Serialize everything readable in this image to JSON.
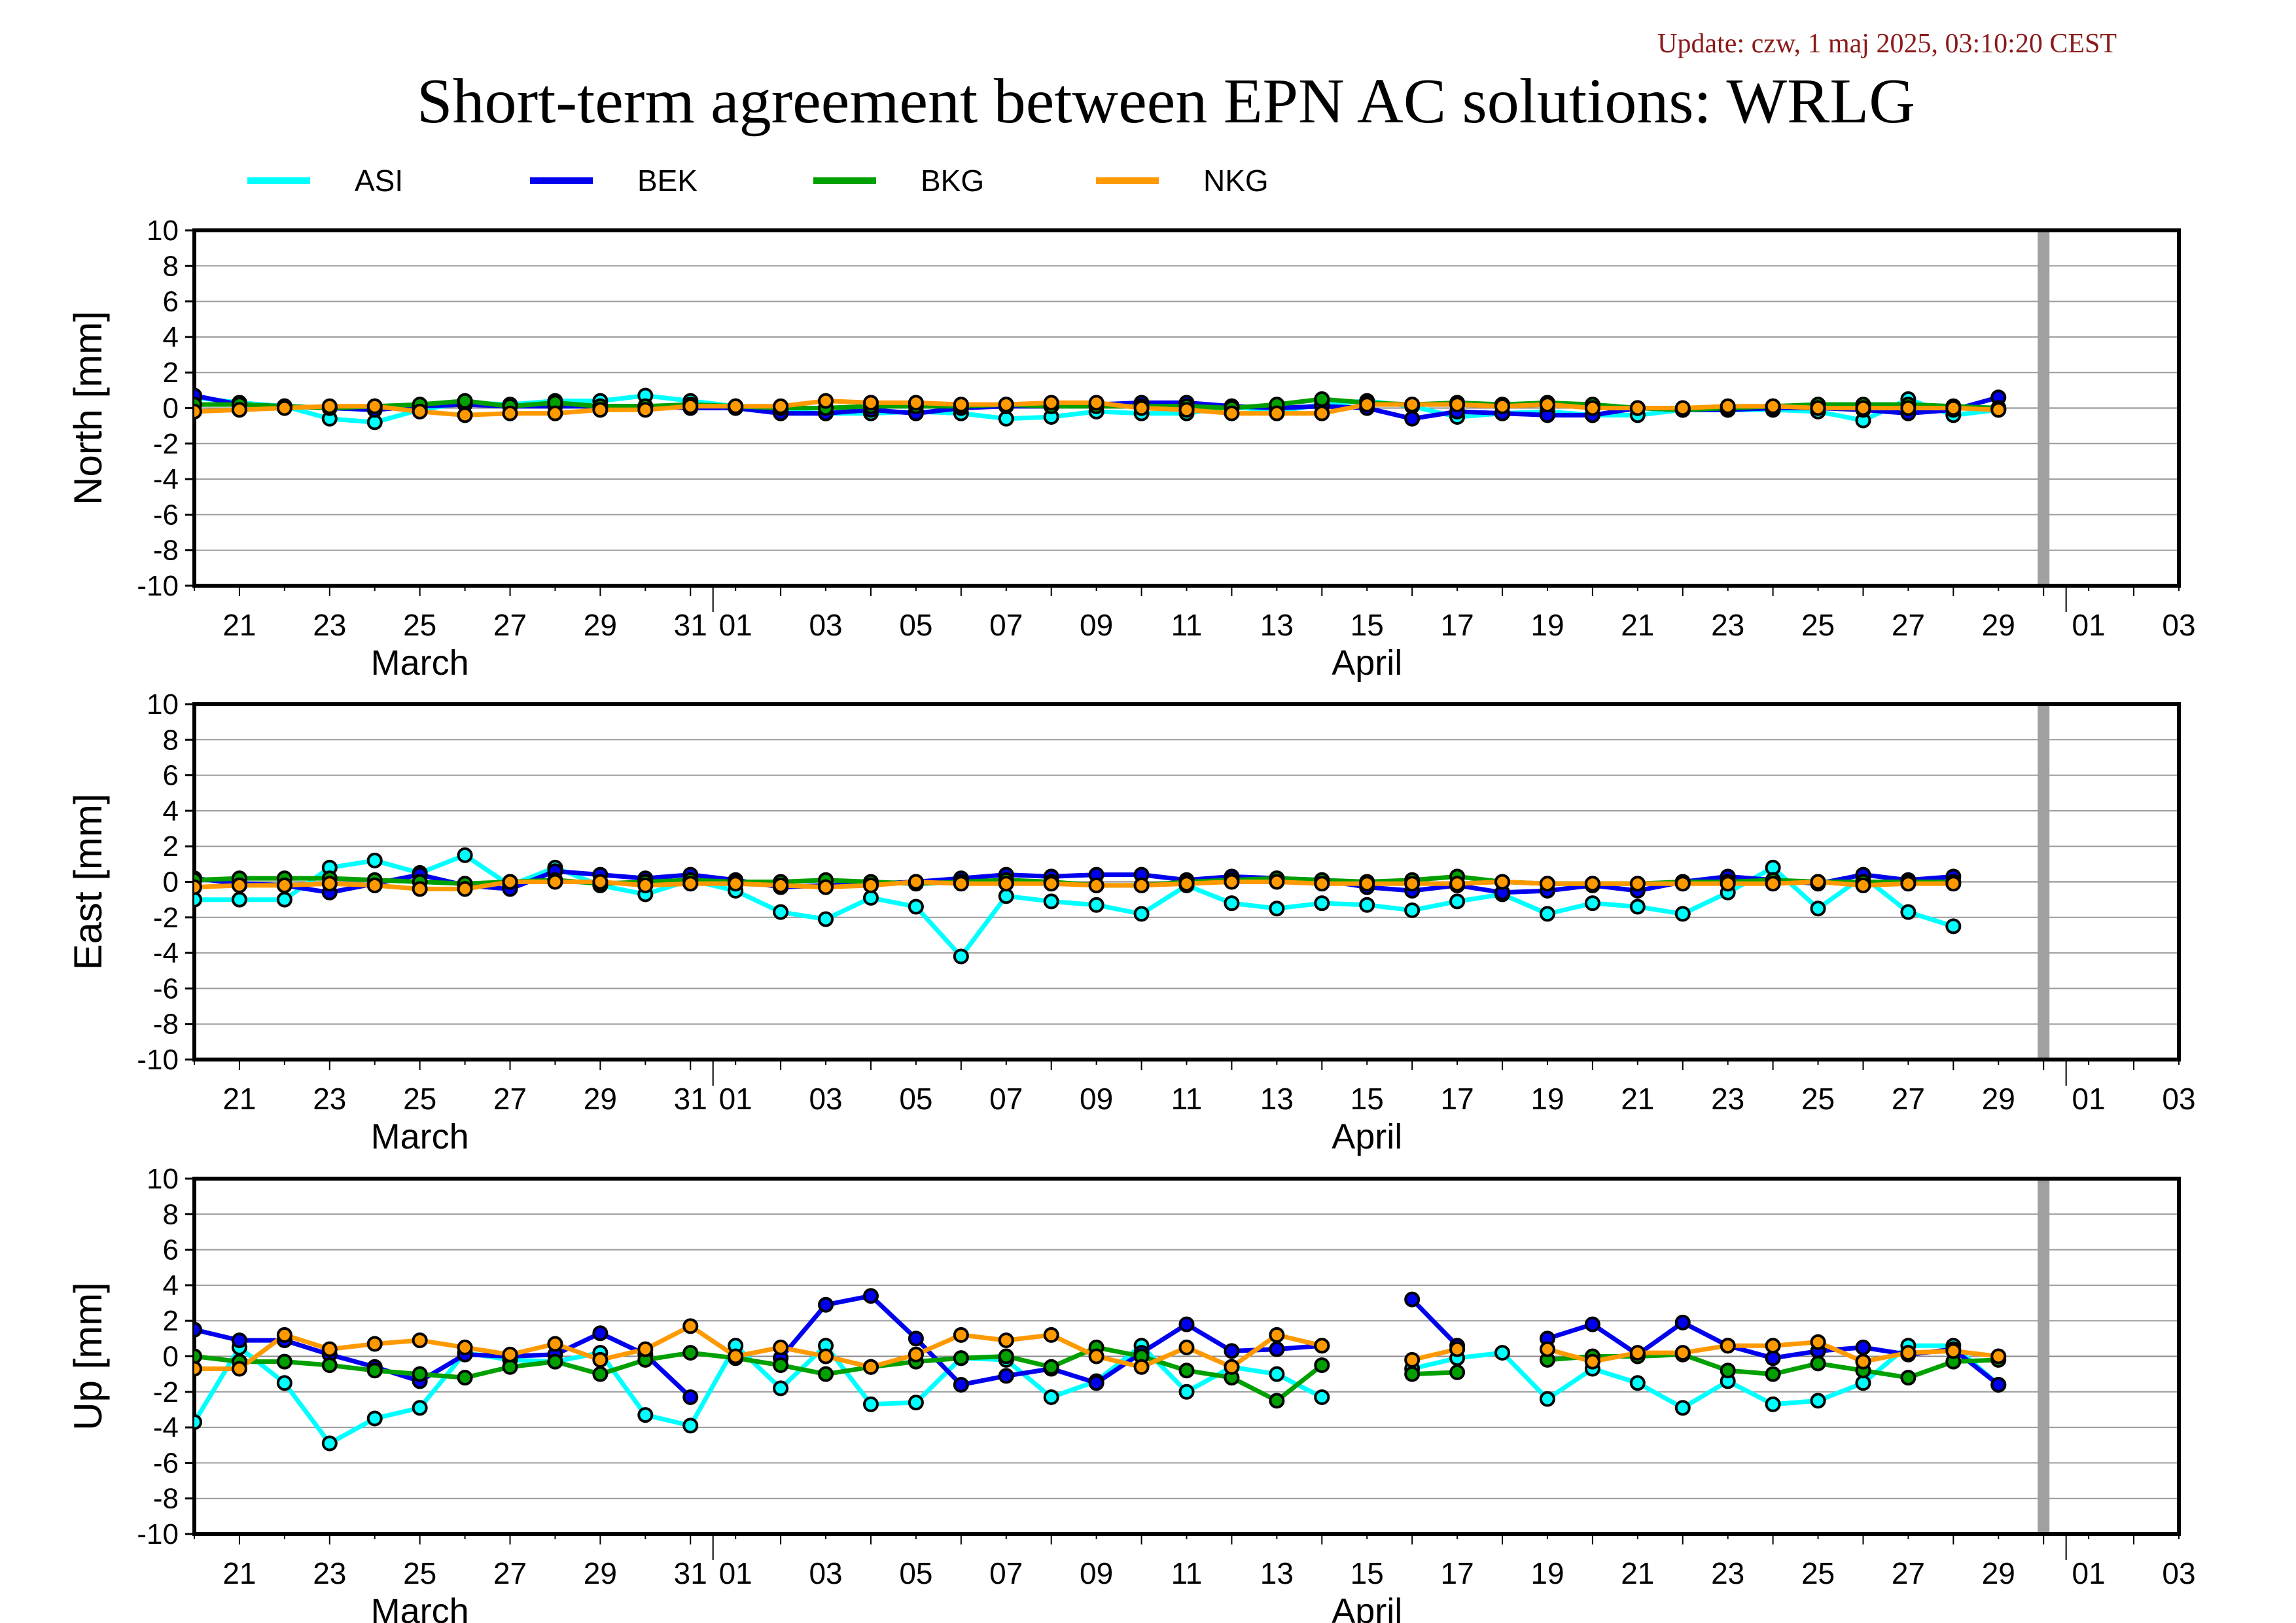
{
  "update_text": "Update: czw, 1 maj 2025, 03:10:20 CEST",
  "title": "Short-term agreement between EPN AC solutions: WRLG",
  "colors": {
    "ASI": "#00ffff",
    "BEK": "#0000ee",
    "BKG": "#00a000",
    "NKG": "#ff9900",
    "update": "#8b1a1a",
    "window": "#a0a0a0"
  },
  "legend": [
    {
      "name": "ASI",
      "color": "#00ffff"
    },
    {
      "name": "BEK",
      "color": "#0000ee"
    },
    {
      "name": "BKG",
      "color": "#00a000"
    },
    {
      "name": "NKG",
      "color": "#ff9900"
    }
  ],
  "chart_data": [
    {
      "type": "line",
      "ylabel": "North [mm]",
      "ylim": [
        -10,
        10
      ],
      "yticks": [
        10,
        8,
        6,
        4,
        2,
        0,
        -2,
        -4,
        -6,
        -8,
        -10
      ],
      "x_unit": "day of 2025 (March 20 .. April 29)",
      "x_ticks": [
        {
          "label": "21",
          "day": "2025-03-21"
        },
        {
          "label": "23",
          "day": "2025-03-23"
        },
        {
          "label": "25",
          "day": "2025-03-25"
        },
        {
          "label": "27",
          "day": "2025-03-27"
        },
        {
          "label": "29",
          "day": "2025-03-29"
        },
        {
          "label": "31",
          "day": "2025-03-31"
        },
        {
          "label": "01",
          "day": "2025-04-01"
        },
        {
          "label": "03",
          "day": "2025-04-03"
        },
        {
          "label": "05",
          "day": "2025-04-05"
        },
        {
          "label": "07",
          "day": "2025-04-07"
        },
        {
          "label": "09",
          "day": "2025-04-09"
        },
        {
          "label": "11",
          "day": "2025-04-11"
        },
        {
          "label": "13",
          "day": "2025-04-13"
        },
        {
          "label": "15",
          "day": "2025-04-15"
        },
        {
          "label": "17",
          "day": "2025-04-17"
        },
        {
          "label": "19",
          "day": "2025-04-19"
        },
        {
          "label": "21",
          "day": "2025-04-21"
        },
        {
          "label": "23",
          "day": "2025-04-23"
        },
        {
          "label": "25",
          "day": "2025-04-25"
        },
        {
          "label": "27",
          "day": "2025-04-27"
        },
        {
          "label": "29",
          "day": "2025-04-29"
        },
        {
          "label": "01",
          "day": "2025-05-01"
        },
        {
          "label": "03",
          "day": "2025-05-03"
        }
      ],
      "month_labels": [
        {
          "label": "March",
          "day": "2025-03-25"
        },
        {
          "label": "April",
          "day": "2025-04-15"
        }
      ],
      "x_range": [
        "2025-03-20",
        "2025-05-03"
      ],
      "current_marker": "2025-04-30",
      "series": [
        {
          "name": "ASI",
          "x_start": "2025-03-20",
          "values": [
            0.6,
            0.3,
            0.1,
            -0.6,
            -0.8,
            -0.1,
            0.3,
            0.2,
            0.4,
            0.4,
            0.7,
            0.4,
            0.1,
            -0.2,
            -0.3,
            -0.3,
            -0.2,
            -0.3,
            -0.6,
            -0.5,
            -0.2,
            -0.3,
            -0.3,
            0.1,
            -0.2,
            0.2,
            0.4,
            0.1,
            -0.5,
            -0.3,
            -0.2,
            -0.4,
            -0.4,
            -0.1,
            -0.1,
            -0.1,
            -0.2,
            -0.7,
            0.5,
            -0.4,
            -0.1
          ]
        },
        {
          "name": "BEK",
          "x_start": "2025-03-20",
          "values": [
            0.7,
            0.2,
            0.1,
            0.0,
            -0.1,
            0.1,
            0.2,
            0.1,
            0.1,
            0.1,
            0.1,
            0.0,
            0.0,
            -0.3,
            -0.3,
            -0.1,
            -0.3,
            0.0,
            0.1,
            0.1,
            0.2,
            0.3,
            0.3,
            0.1,
            0.0,
            0.1,
            0.0,
            -0.6,
            -0.2,
            -0.3,
            -0.4,
            -0.4,
            0.0,
            -0.1,
            -0.1,
            0.0,
            0.0,
            -0.1,
            -0.3,
            -0.1,
            0.6
          ]
        },
        {
          "name": "BKG",
          "x_start": "2025-03-20",
          "values": [
            0.2,
            0.2,
            0.1,
            0.0,
            0.1,
            0.2,
            0.4,
            0.1,
            0.3,
            0.1,
            0.1,
            0.2,
            0.1,
            0.0,
            0.0,
            0.1,
            0.1,
            0.1,
            0.2,
            0.1,
            0.1,
            0.1,
            0.1,
            0.0,
            0.2,
            0.5,
            0.3,
            0.2,
            0.3,
            0.2,
            0.3,
            0.2,
            0.0,
            -0.1,
            0.0,
            0.1,
            0.2,
            0.2,
            0.2,
            0.1,
            0.0
          ]
        },
        {
          "name": "NKG",
          "x_start": "2025-03-20",
          "values": [
            -0.2,
            -0.1,
            0.0,
            0.1,
            0.1,
            -0.2,
            -0.4,
            -0.3,
            -0.3,
            -0.1,
            -0.1,
            0.1,
            0.1,
            0.1,
            0.4,
            0.3,
            0.3,
            0.2,
            0.2,
            0.3,
            0.3,
            0.0,
            -0.1,
            -0.3,
            -0.3,
            -0.3,
            0.2,
            0.2,
            0.2,
            0.1,
            0.2,
            0.0,
            0.0,
            0.0,
            0.1,
            0.1,
            0.0,
            0.0,
            0.0,
            0.0,
            -0.1
          ]
        }
      ]
    },
    {
      "type": "line",
      "ylabel": "East [mm]",
      "ylim": [
        -10,
        10
      ],
      "yticks": [
        10,
        8,
        6,
        4,
        2,
        0,
        -2,
        -4,
        -6,
        -8,
        -10
      ],
      "x_unit": "day of 2025 (March 20 .. April 29)",
      "x_ticks": [
        {
          "label": "21",
          "day": "2025-03-21"
        },
        {
          "label": "23",
          "day": "2025-03-23"
        },
        {
          "label": "25",
          "day": "2025-03-25"
        },
        {
          "label": "27",
          "day": "2025-03-27"
        },
        {
          "label": "29",
          "day": "2025-03-29"
        },
        {
          "label": "31",
          "day": "2025-03-31"
        },
        {
          "label": "01",
          "day": "2025-04-01"
        },
        {
          "label": "03",
          "day": "2025-04-03"
        },
        {
          "label": "05",
          "day": "2025-04-05"
        },
        {
          "label": "07",
          "day": "2025-04-07"
        },
        {
          "label": "09",
          "day": "2025-04-09"
        },
        {
          "label": "11",
          "day": "2025-04-11"
        },
        {
          "label": "13",
          "day": "2025-04-13"
        },
        {
          "label": "15",
          "day": "2025-04-15"
        },
        {
          "label": "17",
          "day": "2025-04-17"
        },
        {
          "label": "19",
          "day": "2025-04-19"
        },
        {
          "label": "21",
          "day": "2025-04-21"
        },
        {
          "label": "23",
          "day": "2025-04-23"
        },
        {
          "label": "25",
          "day": "2025-04-25"
        },
        {
          "label": "27",
          "day": "2025-04-27"
        },
        {
          "label": "29",
          "day": "2025-04-29"
        },
        {
          "label": "01",
          "day": "2025-05-01"
        },
        {
          "label": "03",
          "day": "2025-05-03"
        }
      ],
      "month_labels": [
        {
          "label": "March",
          "day": "2025-03-25"
        },
        {
          "label": "April",
          "day": "2025-04-15"
        }
      ],
      "x_range": [
        "2025-03-20",
        "2025-05-03"
      ],
      "current_marker": "2025-04-30",
      "series": [
        {
          "name": "ASI",
          "x_start": "2025-03-20",
          "values": [
            -1.0,
            -1.0,
            -1.0,
            0.8,
            1.2,
            0.5,
            1.5,
            -0.2,
            0.8,
            -0.2,
            -0.7,
            0.1,
            -0.5,
            -1.7,
            -2.1,
            -0.9,
            -1.4,
            -4.2,
            -0.8,
            -1.1,
            -1.3,
            -1.8,
            -0.2,
            -1.2,
            -1.5,
            -1.2,
            -1.3,
            -1.6,
            -1.1,
            -0.7,
            -1.8,
            -1.2,
            -1.4,
            -1.8,
            -0.6,
            0.8,
            -1.5,
            0.3,
            -1.7,
            -2.5
          ]
        },
        {
          "name": "BEK",
          "x_start": "2025-03-20",
          "values": [
            0.2,
            -0.1,
            -0.2,
            -0.6,
            -0.1,
            0.4,
            -0.2,
            -0.4,
            0.6,
            0.4,
            0.2,
            0.4,
            0.1,
            -0.3,
            -0.2,
            -0.1,
            0.0,
            0.2,
            0.4,
            0.3,
            0.4,
            0.4,
            0.1,
            0.3,
            0.2,
            0.1,
            -0.3,
            -0.5,
            -0.2,
            -0.6,
            -0.5,
            -0.2,
            -0.5,
            0.0,
            0.3,
            0.1,
            -0.1,
            0.4,
            0.1,
            0.3
          ]
        },
        {
          "name": "BKG",
          "x_start": "2025-03-20",
          "values": [
            0.1,
            0.2,
            0.2,
            0.2,
            0.1,
            0.0,
            -0.1,
            0.0,
            0.1,
            -0.1,
            0.0,
            0.1,
            0.0,
            0.0,
            0.1,
            0.0,
            -0.1,
            0.0,
            0.1,
            0.0,
            -0.2,
            -0.2,
            0.0,
            0.1,
            0.2,
            0.1,
            0.0,
            0.1,
            0.3,
            0.0,
            -0.1,
            -0.1,
            -0.1,
            0.0,
            0.0,
            0.1,
            0.0,
            0.0,
            0.0,
            0.0
          ]
        },
        {
          "name": "NKG",
          "x_start": "2025-03-20",
          "values": [
            -0.3,
            -0.2,
            -0.2,
            -0.1,
            -0.2,
            -0.4,
            -0.4,
            0.0,
            0.0,
            0.0,
            -0.2,
            -0.1,
            -0.1,
            -0.2,
            -0.3,
            -0.2,
            0.0,
            -0.1,
            -0.1,
            -0.1,
            -0.2,
            -0.2,
            -0.1,
            0.0,
            0.0,
            -0.1,
            -0.1,
            -0.1,
            -0.1,
            0.0,
            -0.1,
            -0.1,
            -0.1,
            -0.1,
            -0.1,
            -0.1,
            0.0,
            -0.2,
            -0.1,
            -0.1
          ]
        }
      ]
    },
    {
      "type": "line",
      "ylabel": "Up [mm]",
      "ylim": [
        -10,
        10
      ],
      "yticks": [
        10,
        8,
        6,
        4,
        2,
        0,
        -2,
        -4,
        -6,
        -8,
        -10
      ],
      "x_unit": "day of 2025 (March 20 .. April 29)",
      "x_ticks": [
        {
          "label": "21",
          "day": "2025-03-21"
        },
        {
          "label": "23",
          "day": "2025-03-23"
        },
        {
          "label": "25",
          "day": "2025-03-25"
        },
        {
          "label": "27",
          "day": "2025-03-27"
        },
        {
          "label": "29",
          "day": "2025-03-29"
        },
        {
          "label": "31",
          "day": "2025-03-31"
        },
        {
          "label": "01",
          "day": "2025-04-01"
        },
        {
          "label": "03",
          "day": "2025-04-03"
        },
        {
          "label": "05",
          "day": "2025-04-05"
        },
        {
          "label": "07",
          "day": "2025-04-07"
        },
        {
          "label": "09",
          "day": "2025-04-09"
        },
        {
          "label": "11",
          "day": "2025-04-11"
        },
        {
          "label": "13",
          "day": "2025-04-13"
        },
        {
          "label": "15",
          "day": "2025-04-15"
        },
        {
          "label": "17",
          "day": "2025-04-17"
        },
        {
          "label": "19",
          "day": "2025-04-19"
        },
        {
          "label": "21",
          "day": "2025-04-21"
        },
        {
          "label": "23",
          "day": "2025-04-23"
        },
        {
          "label": "25",
          "day": "2025-04-25"
        },
        {
          "label": "27",
          "day": "2025-04-27"
        },
        {
          "label": "29",
          "day": "2025-04-29"
        },
        {
          "label": "01",
          "day": "2025-05-01"
        },
        {
          "label": "03",
          "day": "2025-05-03"
        }
      ],
      "month_labels": [
        {
          "label": "March",
          "day": "2025-03-25"
        },
        {
          "label": "April",
          "day": "2025-04-15"
        }
      ],
      "x_range": [
        "2025-03-20",
        "2025-05-03"
      ],
      "current_marker": "2025-04-30",
      "series": [
        {
          "name": "ASI",
          "x_start": "2025-03-20",
          "values": [
            -3.7,
            0.5,
            -1.5,
            -4.9,
            -3.5,
            -2.9,
            0.2,
            -0.2,
            -0.3,
            0.2,
            -3.3,
            -3.9,
            0.6,
            -1.8,
            0.6,
            -2.7,
            -2.6,
            -0.1,
            -0.2,
            -2.3,
            -1.4,
            0.6,
            -2.0,
            -0.6,
            -1.0,
            -2.3,
            null,
            -0.7,
            -0.1,
            0.2,
            -2.4,
            -0.7,
            -1.5,
            -2.9,
            -1.4,
            -2.7,
            -2.5,
            -1.5,
            0.6,
            0.6,
            -1.6
          ]
        },
        {
          "name": "BEK",
          "x_start": "2025-03-20",
          "values": [
            1.5,
            0.9,
            0.9,
            0.1,
            -0.6,
            -1.4,
            0.1,
            0.0,
            0.1,
            1.3,
            0.1,
            -2.3,
            null,
            -0.1,
            2.9,
            3.4,
            1.0,
            -1.6,
            -1.1,
            -0.7,
            -1.5,
            0.2,
            1.8,
            0.3,
            0.4,
            0.6,
            null,
            3.2,
            0.6,
            null,
            1.0,
            1.8,
            0.1,
            1.9,
            0.6,
            -0.1,
            0.3,
            0.5,
            0.1,
            0.4,
            -1.6
          ]
        },
        {
          "name": "BKG",
          "x_start": "2025-03-20",
          "values": [
            0.0,
            -0.3,
            -0.3,
            -0.5,
            -0.8,
            -1.0,
            -1.2,
            -0.6,
            -0.3,
            -1.0,
            -0.2,
            0.2,
            -0.1,
            -0.5,
            -1.0,
            -0.6,
            -0.3,
            -0.1,
            0.0,
            -0.6,
            0.5,
            0.0,
            -0.8,
            -1.2,
            -2.5,
            -0.5,
            null,
            -1.0,
            -0.9,
            null,
            -0.2,
            0.0,
            0.0,
            0.1,
            -0.8,
            -1.0,
            -0.4,
            -0.8,
            -1.2,
            -0.3,
            -0.2
          ]
        },
        {
          "name": "NKG",
          "x_start": "2025-03-20",
          "values": [
            -0.7,
            -0.7,
            1.2,
            0.4,
            0.7,
            0.9,
            0.5,
            0.1,
            0.7,
            -0.2,
            0.4,
            1.7,
            0.0,
            0.5,
            0.0,
            -0.6,
            0.1,
            1.2,
            0.9,
            1.2,
            0.0,
            -0.6,
            0.5,
            -0.6,
            1.2,
            0.6,
            null,
            -0.2,
            0.4,
            null,
            0.4,
            -0.3,
            0.2,
            0.2,
            0.6,
            0.6,
            0.8,
            -0.3,
            0.2,
            0.3,
            0.0
          ]
        }
      ]
    }
  ]
}
